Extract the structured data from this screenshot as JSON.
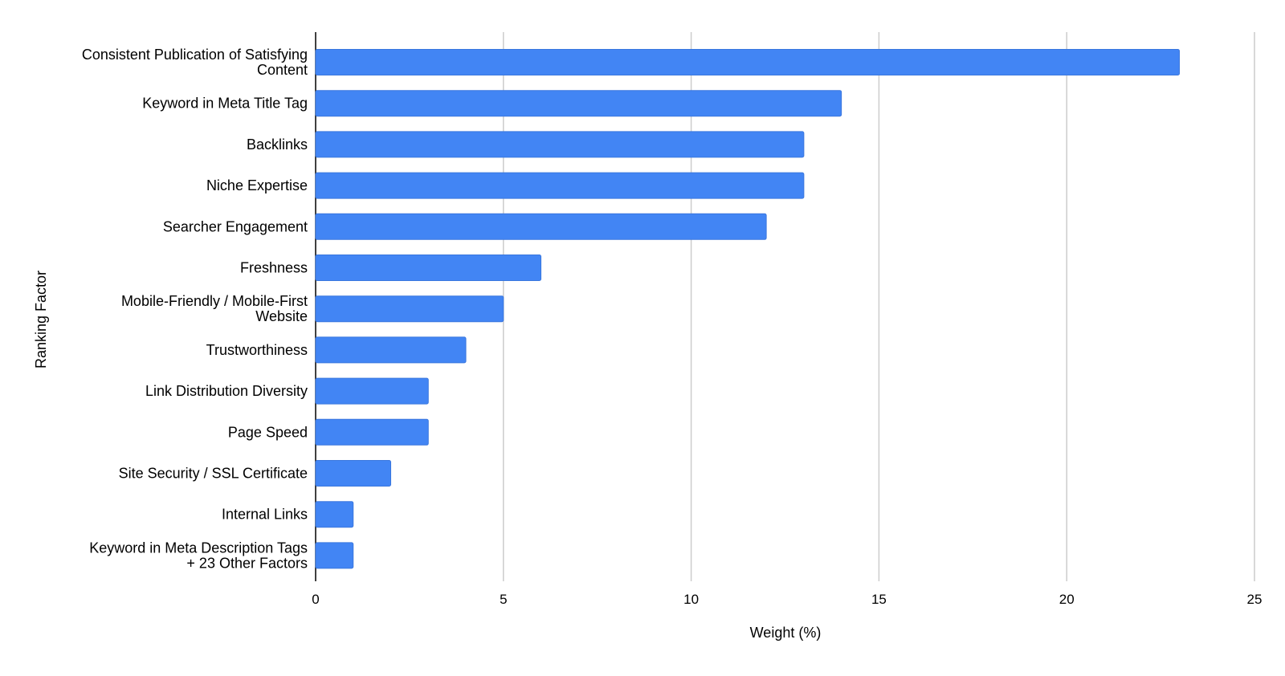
{
  "chart_data": {
    "type": "bar",
    "orientation": "horizontal",
    "title": "",
    "xlabel": "Weight (%)",
    "ylabel": "Ranking Factor",
    "xlim": [
      0,
      25
    ],
    "xticks": [
      0,
      5,
      10,
      15,
      20,
      25
    ],
    "grid": true,
    "legend": "none",
    "bar_color": "#4285f4",
    "bar_edge_color": "#3a77de",
    "categories": [
      "Consistent Publication of Satisfying Content",
      "Keyword in Meta Title Tag",
      "Backlinks",
      "Niche Expertise",
      "Searcher Engagement",
      "Freshness",
      "Mobile-Friendly / Mobile-First Website",
      "Trustworthiness",
      "Link Distribution Diversity",
      "Page Speed",
      "Site Security / SSL Certificate",
      "Internal Links",
      "Keyword in Meta Description Tags + 23 Other Factors"
    ],
    "category_label_lines": [
      [
        "Consistent Publication of Satisfying",
        "Content"
      ],
      [
        "Keyword in Meta Title Tag"
      ],
      [
        "Backlinks"
      ],
      [
        "Niche Expertise"
      ],
      [
        "Searcher Engagement"
      ],
      [
        "Freshness"
      ],
      [
        "Mobile-Friendly / Mobile-First",
        "Website"
      ],
      [
        "Trustworthiness"
      ],
      [
        "Link Distribution Diversity"
      ],
      [
        "Page Speed"
      ],
      [
        "Site Security / SSL Certificate"
      ],
      [
        "Internal Links"
      ],
      [
        "Keyword in Meta Description Tags",
        "+ 23 Other Factors"
      ]
    ],
    "values": [
      23,
      14,
      13,
      13,
      12,
      6,
      5,
      4,
      3,
      3,
      2,
      1,
      1
    ]
  }
}
